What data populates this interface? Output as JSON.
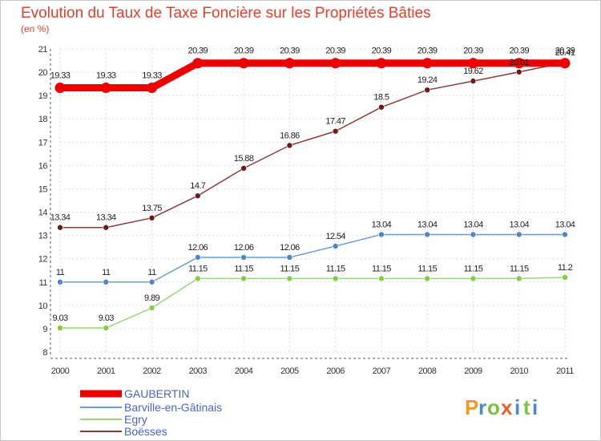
{
  "chart_data": {
    "type": "line",
    "title": "Evolution du Taux de Taxe Foncière sur les Propriétés Bâties",
    "subtitle": "(en %)",
    "xlabel": "",
    "ylabel": "",
    "x": [
      "2000",
      "2001",
      "2002",
      "2003",
      "2004",
      "2005",
      "2006",
      "2007",
      "2008",
      "2009",
      "2010",
      "2011"
    ],
    "ylim": [
      8,
      21
    ],
    "yticks": [
      "8",
      "9",
      "10",
      "11",
      "12",
      "13",
      "14",
      "15",
      "16",
      "17",
      "18",
      "19",
      "20",
      "21"
    ],
    "grid": true,
    "legend_position": "bottom-left",
    "series": [
      {
        "name": "GAUBERTIN",
        "color": "#ee0000",
        "values": [
          19.33,
          19.33,
          19.33,
          20.39,
          20.39,
          20.39,
          20.39,
          20.39,
          20.39,
          20.39,
          20.39,
          20.39
        ],
        "labels": [
          "19.33",
          "19.33",
          "19.33",
          "20.39",
          "20.39",
          "20.39",
          "20.39",
          "20.39",
          "20.39",
          "20.39",
          "20.39",
          "20.39"
        ]
      },
      {
        "name": "Barville-en-Gâtinais",
        "color": "#6f9cd0",
        "marker": "#4f86c8",
        "values": [
          11,
          11,
          11,
          12.06,
          12.06,
          12.06,
          12.54,
          13.04,
          13.04,
          13.04,
          13.04,
          13.04
        ],
        "labels": [
          "11",
          "11",
          "11",
          "12.06",
          "12.06",
          "12.06",
          "12.54",
          "13.04",
          "13.04",
          "13.04",
          "13.04",
          "13.04"
        ]
      },
      {
        "name": "Egry",
        "color": "#9cd47a",
        "marker": "#84cc44",
        "values": [
          9.03,
          9.03,
          9.89,
          11.15,
          11.15,
          11.15,
          11.15,
          11.15,
          11.15,
          11.15,
          11.15,
          11.2
        ],
        "labels": [
          "9.03",
          "9.03",
          "9.89",
          "11.15",
          "11.15",
          "11.15",
          "11.15",
          "11.15",
          "11.15",
          "11.15",
          "11.15",
          "11.2"
        ]
      },
      {
        "name": "Boësses",
        "color": "#8b3a3a",
        "marker": "#6a1a1a",
        "values": [
          13.34,
          13.34,
          13.75,
          14.7,
          15.88,
          16.86,
          17.47,
          18.5,
          19.24,
          19.62,
          20.01,
          20.41
        ],
        "labels": [
          "13.34",
          "13.34",
          "13.75",
          "14.7",
          "15.88",
          "16.86",
          "17.47",
          "18.5",
          "19.24",
          "19.62",
          "20.01",
          "20.41"
        ]
      }
    ]
  },
  "brand": {
    "letters": [
      "P",
      "r",
      "o",
      "x",
      "i",
      "t",
      "i"
    ],
    "colors": [
      "#f29a1e",
      "#4a8ad0",
      "#7cc242",
      "#e85f2a",
      "#4a8ad0",
      "#7cc242",
      "#4a8ad0"
    ]
  }
}
